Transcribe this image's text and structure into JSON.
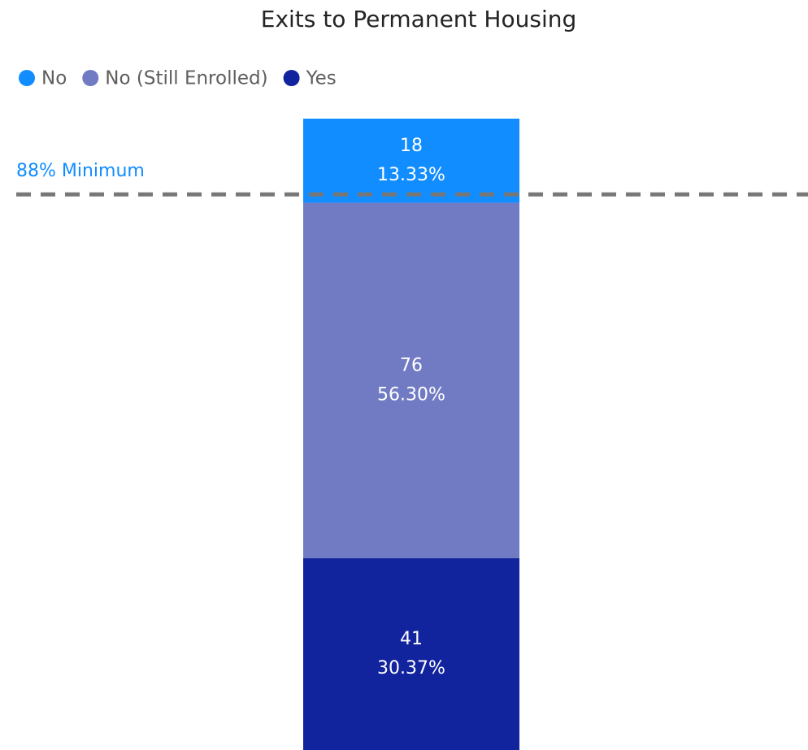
{
  "chart_data": {
    "type": "stacked_bar_100",
    "title": "Exits to Permanent Housing",
    "categories": [
      null
    ],
    "series": [
      {
        "name": "No",
        "color": "#118dff",
        "values": [
          13.33
        ],
        "value_labels": [
          "13.33%"
        ],
        "counts": [
          18
        ]
      },
      {
        "name": "No (Still Enrolled)",
        "color": "#717bc4",
        "values": [
          56.3
        ],
        "value_labels": [
          "56.30%"
        ],
        "counts": [
          76
        ]
      },
      {
        "name": "Yes",
        "color": "#12239e",
        "values": [
          30.37
        ],
        "value_labels": [
          "30.37%"
        ],
        "counts": [
          41
        ]
      }
    ],
    "ylim": [
      0,
      100
    ],
    "reference_line": {
      "value": 88,
      "label": "88% Minimum",
      "color": "#777777",
      "label_color": "#118dff"
    },
    "legend": "top-left"
  }
}
